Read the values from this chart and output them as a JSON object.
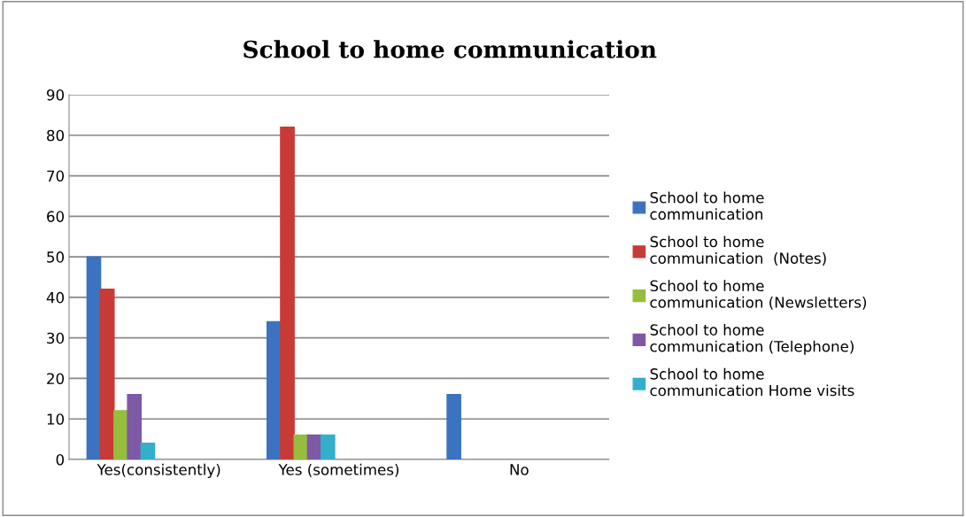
{
  "chart_data": {
    "type": "bar",
    "title": "School to home communication",
    "categories": [
      "Yes(consistently)",
      "Yes (sometimes)",
      "No"
    ],
    "series": [
      {
        "name": "School to home\ncommunication",
        "color": "#3b73c0",
        "values": [
          50,
          34,
          16
        ]
      },
      {
        "name": "School to home\ncommunication  (Notes)",
        "color": "#c83a36",
        "values": [
          42,
          82,
          null
        ]
      },
      {
        "name": "School to home\ncommunication (Newsletters)",
        "color": "#97bd3d",
        "values": [
          12,
          6,
          null
        ]
      },
      {
        "name": "School to home\ncommunication (Telephone)",
        "color": "#7d59a6",
        "values": [
          16,
          6,
          null
        ]
      },
      {
        "name": "School to home\ncommunication Home visits",
        "color": "#33afcb",
        "values": [
          4,
          6,
          null
        ]
      }
    ],
    "ylim": [
      0,
      90
    ],
    "yticks": [
      0,
      10,
      20,
      30,
      40,
      50,
      60,
      70,
      80,
      90
    ],
    "grid": "y",
    "legend": "right"
  }
}
